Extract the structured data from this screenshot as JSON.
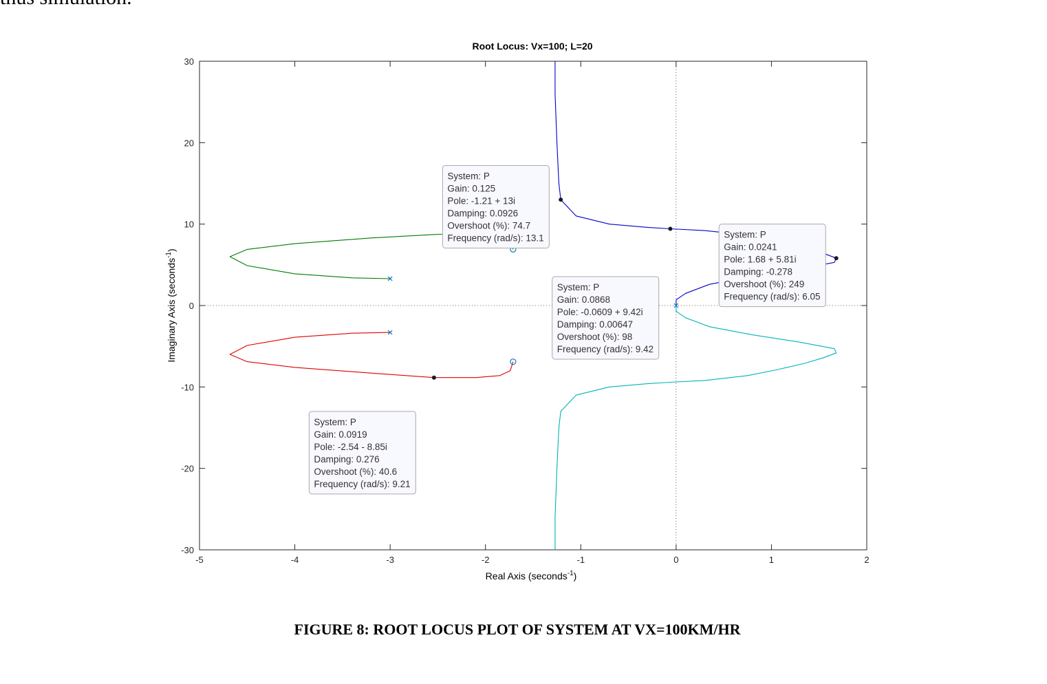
{
  "page": {
    "top_text": "thus simulation.",
    "caption": "FIGURE 8: ROOT LOCUS PLOT OF SYSTEM AT VX=100KM/HR"
  },
  "chart_data": {
    "type": "line",
    "title": "Root Locus: Vx=100; L=20",
    "xlabel": "Real Axis (seconds",
    "ylabel": "Imaginary Axis (seconds",
    "label_exponent": "-1",
    "xlim": [
      -5,
      2
    ],
    "ylim": [
      -30,
      30
    ],
    "xticks": [
      -5,
      -4,
      -3,
      -2,
      -1,
      0,
      1,
      2
    ],
    "yticks": [
      -30,
      -20,
      -10,
      0,
      10,
      20,
      30
    ],
    "grid": false,
    "zero_lines": true,
    "series": [
      {
        "color": "#0000cc",
        "points": [
          [
            -1.27,
            30
          ],
          [
            -1.27,
            26
          ],
          [
            -1.25,
            20
          ],
          [
            -1.23,
            15
          ],
          [
            -1.21,
            13
          ],
          [
            -1.05,
            11
          ],
          [
            -0.7,
            10
          ],
          [
            -0.3,
            9.6
          ],
          [
            -0.06,
            9.42
          ],
          [
            0.3,
            9.2
          ],
          [
            0.55,
            8.9
          ],
          [
            0.75,
            8.6
          ],
          [
            1.05,
            7.9
          ],
          [
            1.35,
            7.1
          ],
          [
            1.55,
            6.4
          ],
          [
            1.68,
            5.81
          ],
          [
            1.66,
            5.3
          ],
          [
            1.3,
            4.5
          ],
          [
            0.8,
            3.6
          ],
          [
            0.35,
            2.6
          ],
          [
            0.1,
            1.5
          ],
          [
            0.0,
            0.7
          ],
          [
            0.0,
            0
          ]
        ]
      },
      {
        "color": "#00b3b3",
        "points": [
          [
            0.0,
            0
          ],
          [
            0.0,
            -0.7
          ],
          [
            0.1,
            -1.5
          ],
          [
            0.35,
            -2.6
          ],
          [
            0.8,
            -3.6
          ],
          [
            1.3,
            -4.5
          ],
          [
            1.66,
            -5.3
          ],
          [
            1.68,
            -5.81
          ],
          [
            1.55,
            -6.4
          ],
          [
            1.35,
            -7.1
          ],
          [
            1.05,
            -7.9
          ],
          [
            0.75,
            -8.6
          ],
          [
            0.3,
            -9.2
          ],
          [
            -0.06,
            -9.42
          ],
          [
            -0.3,
            -9.6
          ],
          [
            -0.7,
            -10
          ],
          [
            -1.05,
            -11
          ],
          [
            -1.21,
            -13
          ],
          [
            -1.23,
            -15
          ],
          [
            -1.25,
            -20
          ],
          [
            -1.27,
            -26
          ],
          [
            -1.27,
            -30
          ]
        ]
      },
      {
        "color": "#007a00",
        "points": [
          [
            -3.0,
            3.3
          ],
          [
            -3.4,
            3.4
          ],
          [
            -4.0,
            3.9
          ],
          [
            -4.5,
            4.9
          ],
          [
            -4.68,
            6.0
          ],
          [
            -4.5,
            6.9
          ],
          [
            -4.0,
            7.6
          ],
          [
            -3.2,
            8.3
          ],
          [
            -2.5,
            8.75
          ],
          [
            -2.1,
            8.85
          ],
          [
            -1.85,
            8.6
          ],
          [
            -1.74,
            8.0
          ],
          [
            -1.71,
            6.9
          ]
        ]
      },
      {
        "color": "#dd0000",
        "points": [
          [
            -3.0,
            -3.3
          ],
          [
            -3.4,
            -3.4
          ],
          [
            -4.0,
            -3.9
          ],
          [
            -4.5,
            -4.9
          ],
          [
            -4.68,
            -6.0
          ],
          [
            -4.5,
            -6.9
          ],
          [
            -4.0,
            -7.6
          ],
          [
            -3.2,
            -8.3
          ],
          [
            -2.54,
            -8.85
          ],
          [
            -2.1,
            -8.85
          ],
          [
            -1.85,
            -8.6
          ],
          [
            -1.74,
            -8.0
          ],
          [
            -1.71,
            -6.9
          ]
        ]
      }
    ],
    "poles": [
      [
        -3.0,
        3.3
      ],
      [
        -3.0,
        -3.3
      ],
      [
        0.0,
        0.0
      ]
    ],
    "zeros": [
      [
        -1.71,
        6.9
      ],
      [
        -1.71,
        -6.9
      ]
    ],
    "marker_color": "#0072bd",
    "datatips": [
      {
        "point": [
          -1.21,
          13.0
        ],
        "box_at": [
          -2.45,
          17.2
        ],
        "lines": [
          "System: P",
          "Gain: 0.125",
          "Pole: -1.21 + 13i",
          "Damping: 0.0926",
          "Overshoot (%): 74.7",
          "Frequency (rad/s): 13.1"
        ]
      },
      {
        "point": [
          -0.0609,
          9.42
        ],
        "box_at": [
          -1.3,
          3.55
        ],
        "lines": [
          "System: P",
          "Gain: 0.0868",
          "Pole: -0.0609 + 9.42i",
          "Damping: 0.00647",
          "Overshoot (%): 98",
          "Frequency (rad/s): 9.42"
        ]
      },
      {
        "point": [
          1.68,
          5.81
        ],
        "box_at": [
          0.45,
          10.0
        ],
        "lines": [
          "System: P",
          "Gain: 0.0241",
          "Pole: 1.68 + 5.81i",
          "Damping: -0.278",
          "Overshoot (%): 249",
          "Frequency (rad/s): 6.05"
        ]
      },
      {
        "point": [
          -2.54,
          -8.85
        ],
        "box_at": [
          -3.85,
          -13.0
        ],
        "lines": [
          "System: P",
          "Gain: 0.0919",
          "Pole: -2.54 - 8.85i",
          "Damping: 0.276",
          "Overshoot (%): 40.6",
          "Frequency (rad/s): 9.21"
        ]
      }
    ]
  }
}
